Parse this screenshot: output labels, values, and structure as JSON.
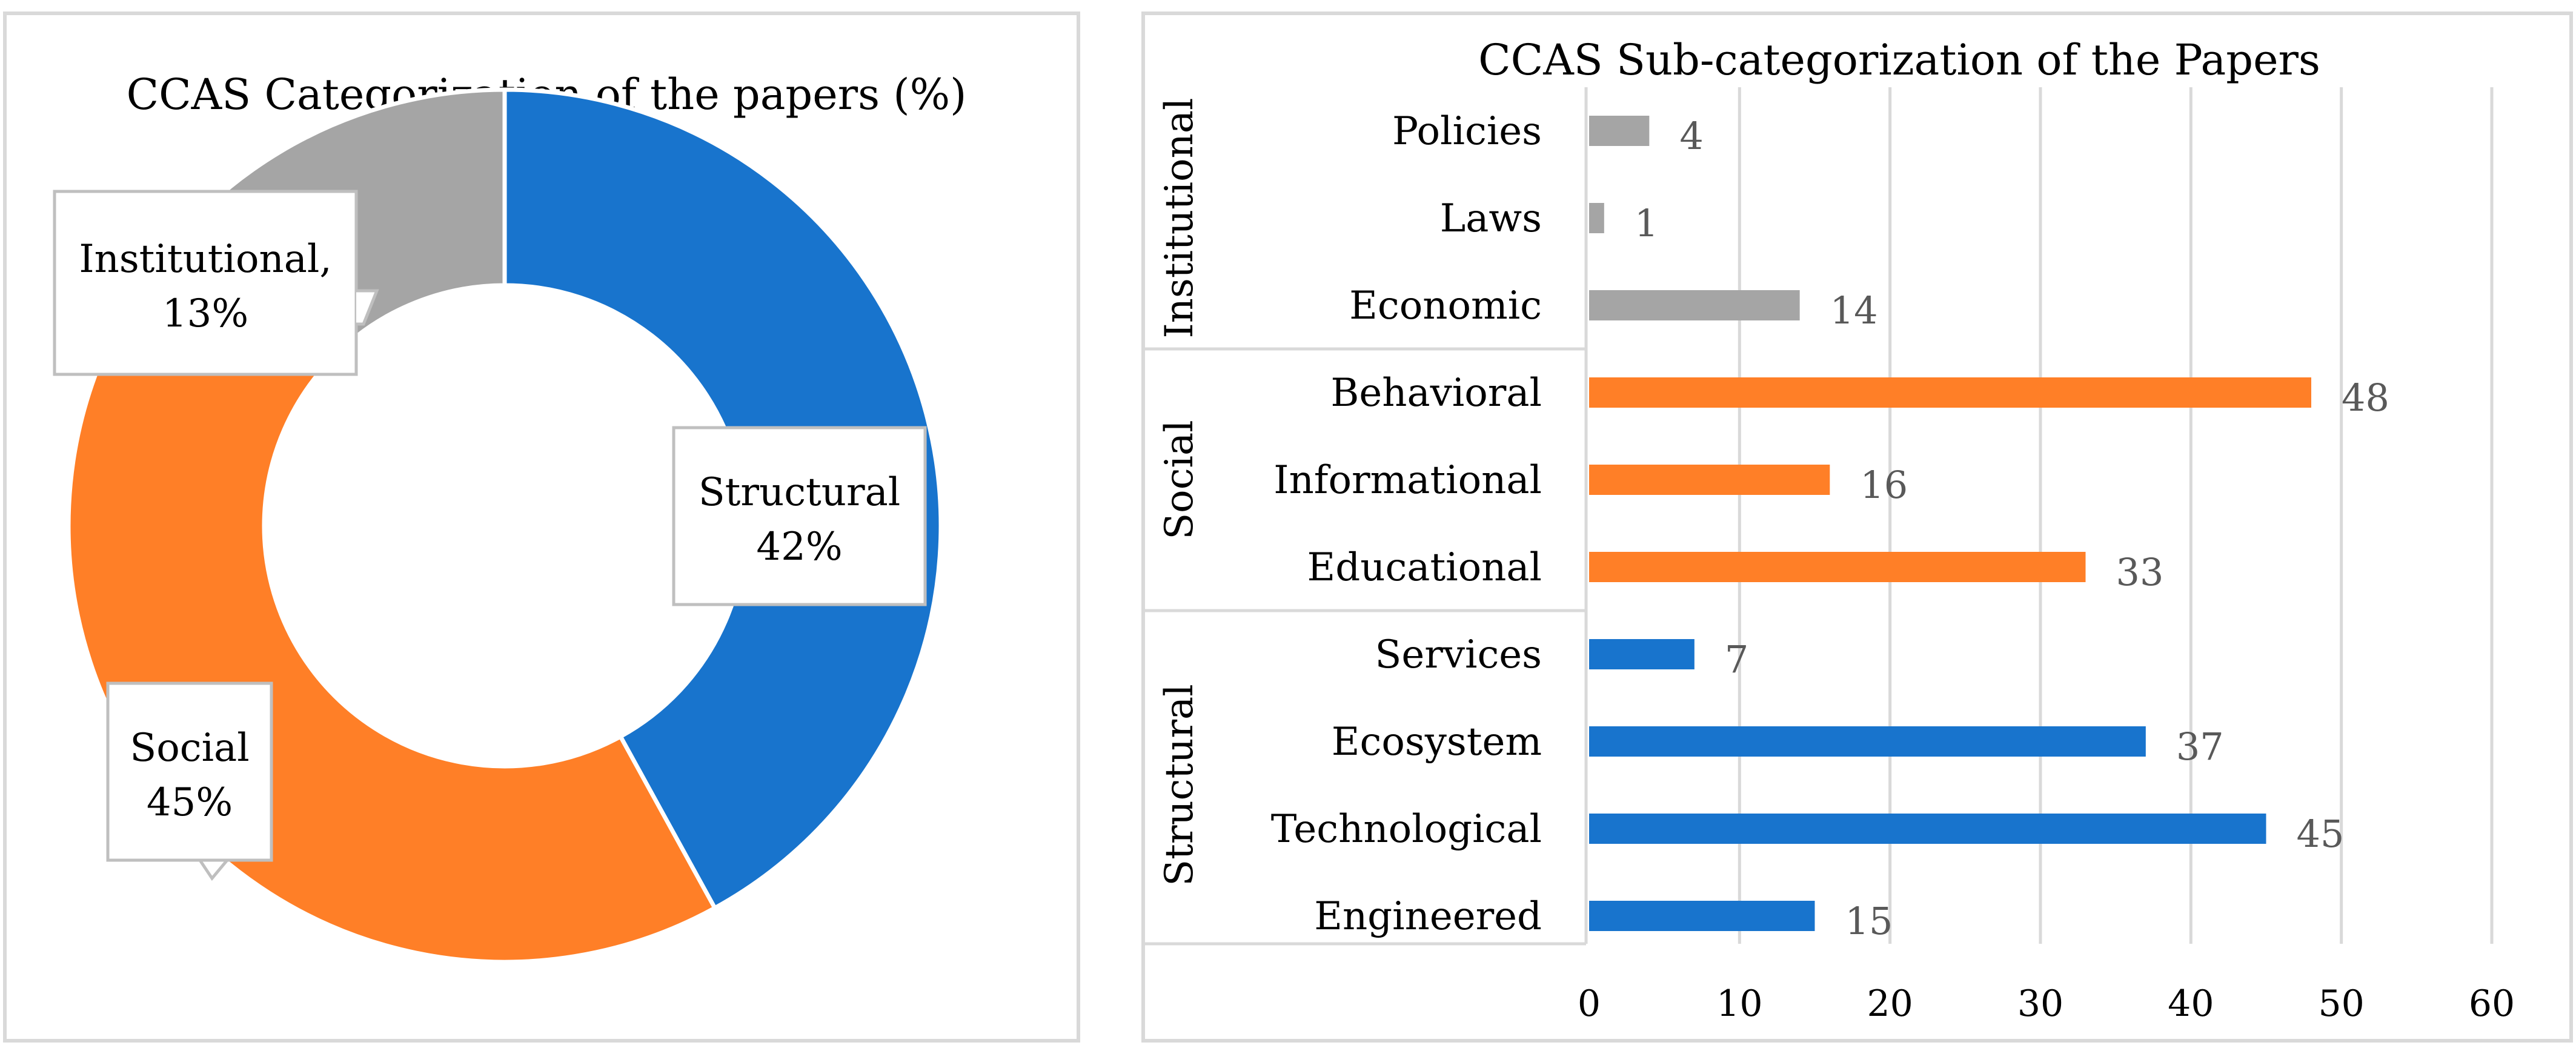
{
  "colors": {
    "structural": "#1874CD",
    "social": "#FF7F27",
    "institutional": "#A5A5A5",
    "label_text": "#000000",
    "value_text": "#595959",
    "gridline": "#D9D9D9",
    "border": "#D9D9D9"
  },
  "chart_data": [
    {
      "type": "pie",
      "variant": "donut",
      "title": "CCAS Categorization of the papers (%)",
      "categories": [
        "Structural",
        "Social",
        "Institutional"
      ],
      "values": [
        42,
        45,
        13
      ],
      "data_labels": [
        {
          "name": "Structural",
          "value": "42%"
        },
        {
          "name": "Social",
          "value": "45%"
        },
        {
          "name": "Institutional,",
          "value": "13%"
        }
      ]
    },
    {
      "type": "bar",
      "orientation": "horizontal",
      "title": "CCAS Sub-categorization of the Papers",
      "groups": [
        {
          "name": "Institutional",
          "categories": [
            "Policies",
            "Laws",
            "Economic"
          ],
          "values": [
            4,
            1,
            14
          ]
        },
        {
          "name": "Social",
          "categories": [
            "Behavioral",
            "Informational",
            "Educational"
          ],
          "values": [
            48,
            16,
            33
          ]
        },
        {
          "name": "Structural",
          "categories": [
            "Services",
            "Ecosystem",
            "Technological",
            "Engineered"
          ],
          "values": [
            7,
            37,
            45,
            15
          ]
        }
      ],
      "xlim": [
        0,
        60
      ],
      "xticks": [
        "0",
        "10",
        "20",
        "30",
        "40",
        "50",
        "60"
      ],
      "grid": true
    }
  ]
}
